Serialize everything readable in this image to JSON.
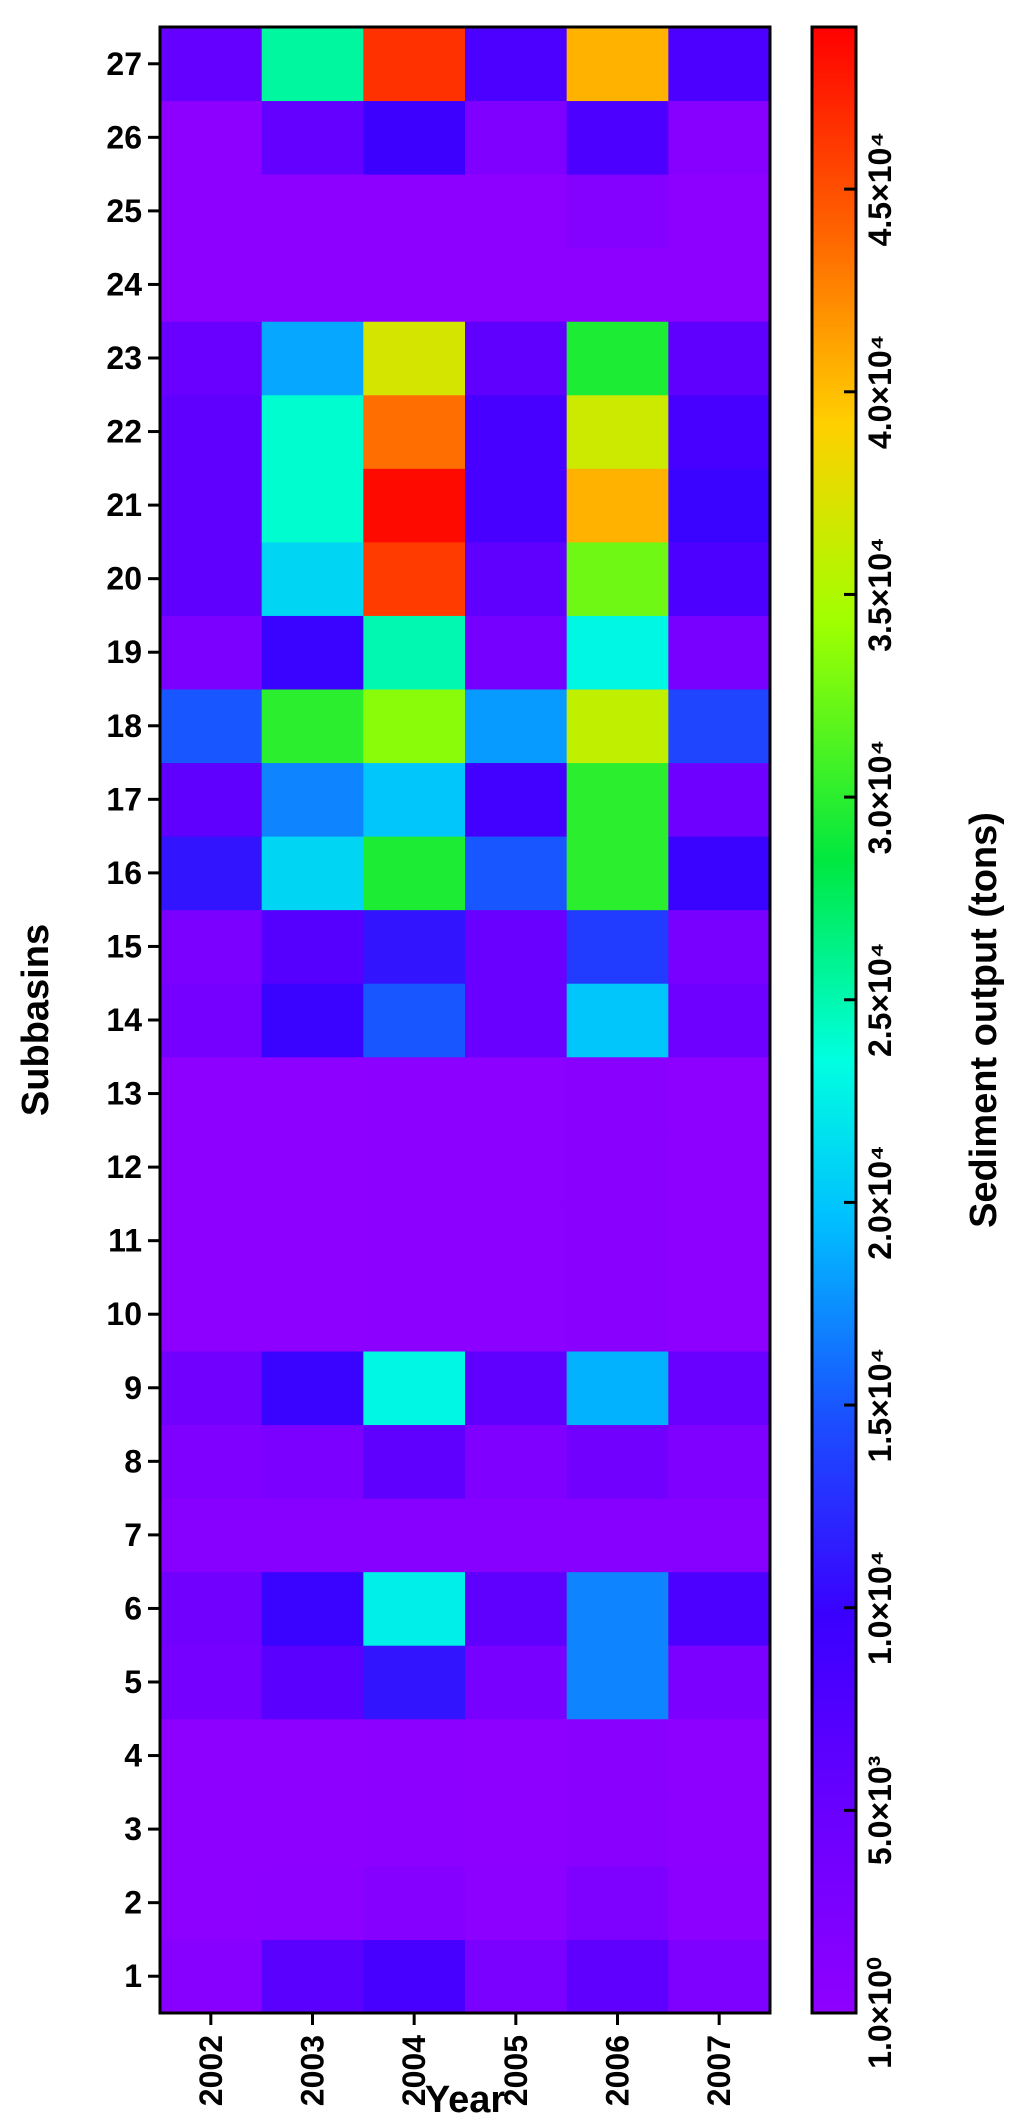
{
  "chart_data": {
    "type": "heatmap",
    "title": "",
    "xlabel": "Year",
    "ylabel": "Subbasins",
    "colorbar_label": "Sediment output (tons)",
    "x": [
      "2002",
      "2003",
      "2004",
      "2005",
      "2006",
      "2007"
    ],
    "y": [
      "1",
      "2",
      "3",
      "4",
      "5",
      "6",
      "7",
      "8",
      "9",
      "10",
      "11",
      "12",
      "13",
      "14",
      "15",
      "16",
      "17",
      "18",
      "19",
      "20",
      "21",
      "22",
      "23",
      "24",
      "25",
      "26",
      "27"
    ],
    "value_range": [
      1,
      49000
    ],
    "colorbar_ticks": [
      {
        "value": 1,
        "label": "1.0×10⁰"
      },
      {
        "value": 5000,
        "label": "5.0×10³"
      },
      {
        "value": 10000,
        "label": "1.0×10⁴"
      },
      {
        "value": 15000,
        "label": "1.5×10⁴"
      },
      {
        "value": 20000,
        "label": "2.0×10⁴"
      },
      {
        "value": 25000,
        "label": "2.5×10⁴"
      },
      {
        "value": 30000,
        "label": "3.0×10⁴"
      },
      {
        "value": 35000,
        "label": "3.5×10⁴"
      },
      {
        "value": 40000,
        "label": "4.0×10⁴"
      },
      {
        "value": 45000,
        "label": "4.5×10⁴"
      }
    ],
    "values": [
      [
        1000,
        6500,
        8500,
        2800,
        6000,
        2200
      ],
      [
        300,
        500,
        1200,
        500,
        2200,
        400
      ],
      [
        200,
        300,
        500,
        300,
        800,
        300
      ],
      [
        200,
        300,
        400,
        300,
        600,
        300
      ],
      [
        3500,
        6500,
        11000,
        3000,
        17000,
        2500
      ],
      [
        4000,
        10000,
        22500,
        6000,
        17000,
        8000
      ],
      [
        1000,
        1000,
        1000,
        1000,
        1000,
        1000
      ],
      [
        2000,
        2500,
        6000,
        2000,
        4000,
        2000
      ],
      [
        4000,
        10000,
        23000,
        6000,
        19000,
        5000
      ],
      [
        200,
        300,
        400,
        500,
        700,
        200
      ],
      [
        200,
        300,
        400,
        500,
        700,
        200
      ],
      [
        200,
        300,
        400,
        500,
        700,
        200
      ],
      [
        200,
        300,
        400,
        500,
        700,
        200
      ],
      [
        3500,
        10000,
        15000,
        5000,
        20000,
        4500
      ],
      [
        2500,
        7000,
        11000,
        5000,
        13500,
        3000
      ],
      [
        11000,
        21000,
        29500,
        15000,
        30000,
        10000
      ],
      [
        6000,
        17000,
        20000,
        9000,
        30000,
        4500
      ],
      [
        15000,
        30000,
        33500,
        18000,
        36000,
        14000
      ],
      [
        2500,
        10000,
        25000,
        3500,
        23000,
        3000
      ],
      [
        6000,
        21000,
        46000,
        6000,
        32500,
        8000
      ],
      [
        6000,
        24000,
        48500,
        8500,
        40500,
        10000
      ],
      [
        6000,
        24000,
        43500,
        8500,
        36500,
        8500
      ],
      [
        5000,
        18500,
        37000,
        6000,
        29500,
        6000
      ],
      [
        200,
        200,
        200,
        200,
        200,
        200
      ],
      [
        200,
        300,
        300,
        300,
        1500,
        300
      ],
      [
        300,
        5500,
        9500,
        2000,
        8000,
        1000
      ],
      [
        5500,
        25500,
        46500,
        8000,
        40500,
        8000
      ]
    ]
  }
}
